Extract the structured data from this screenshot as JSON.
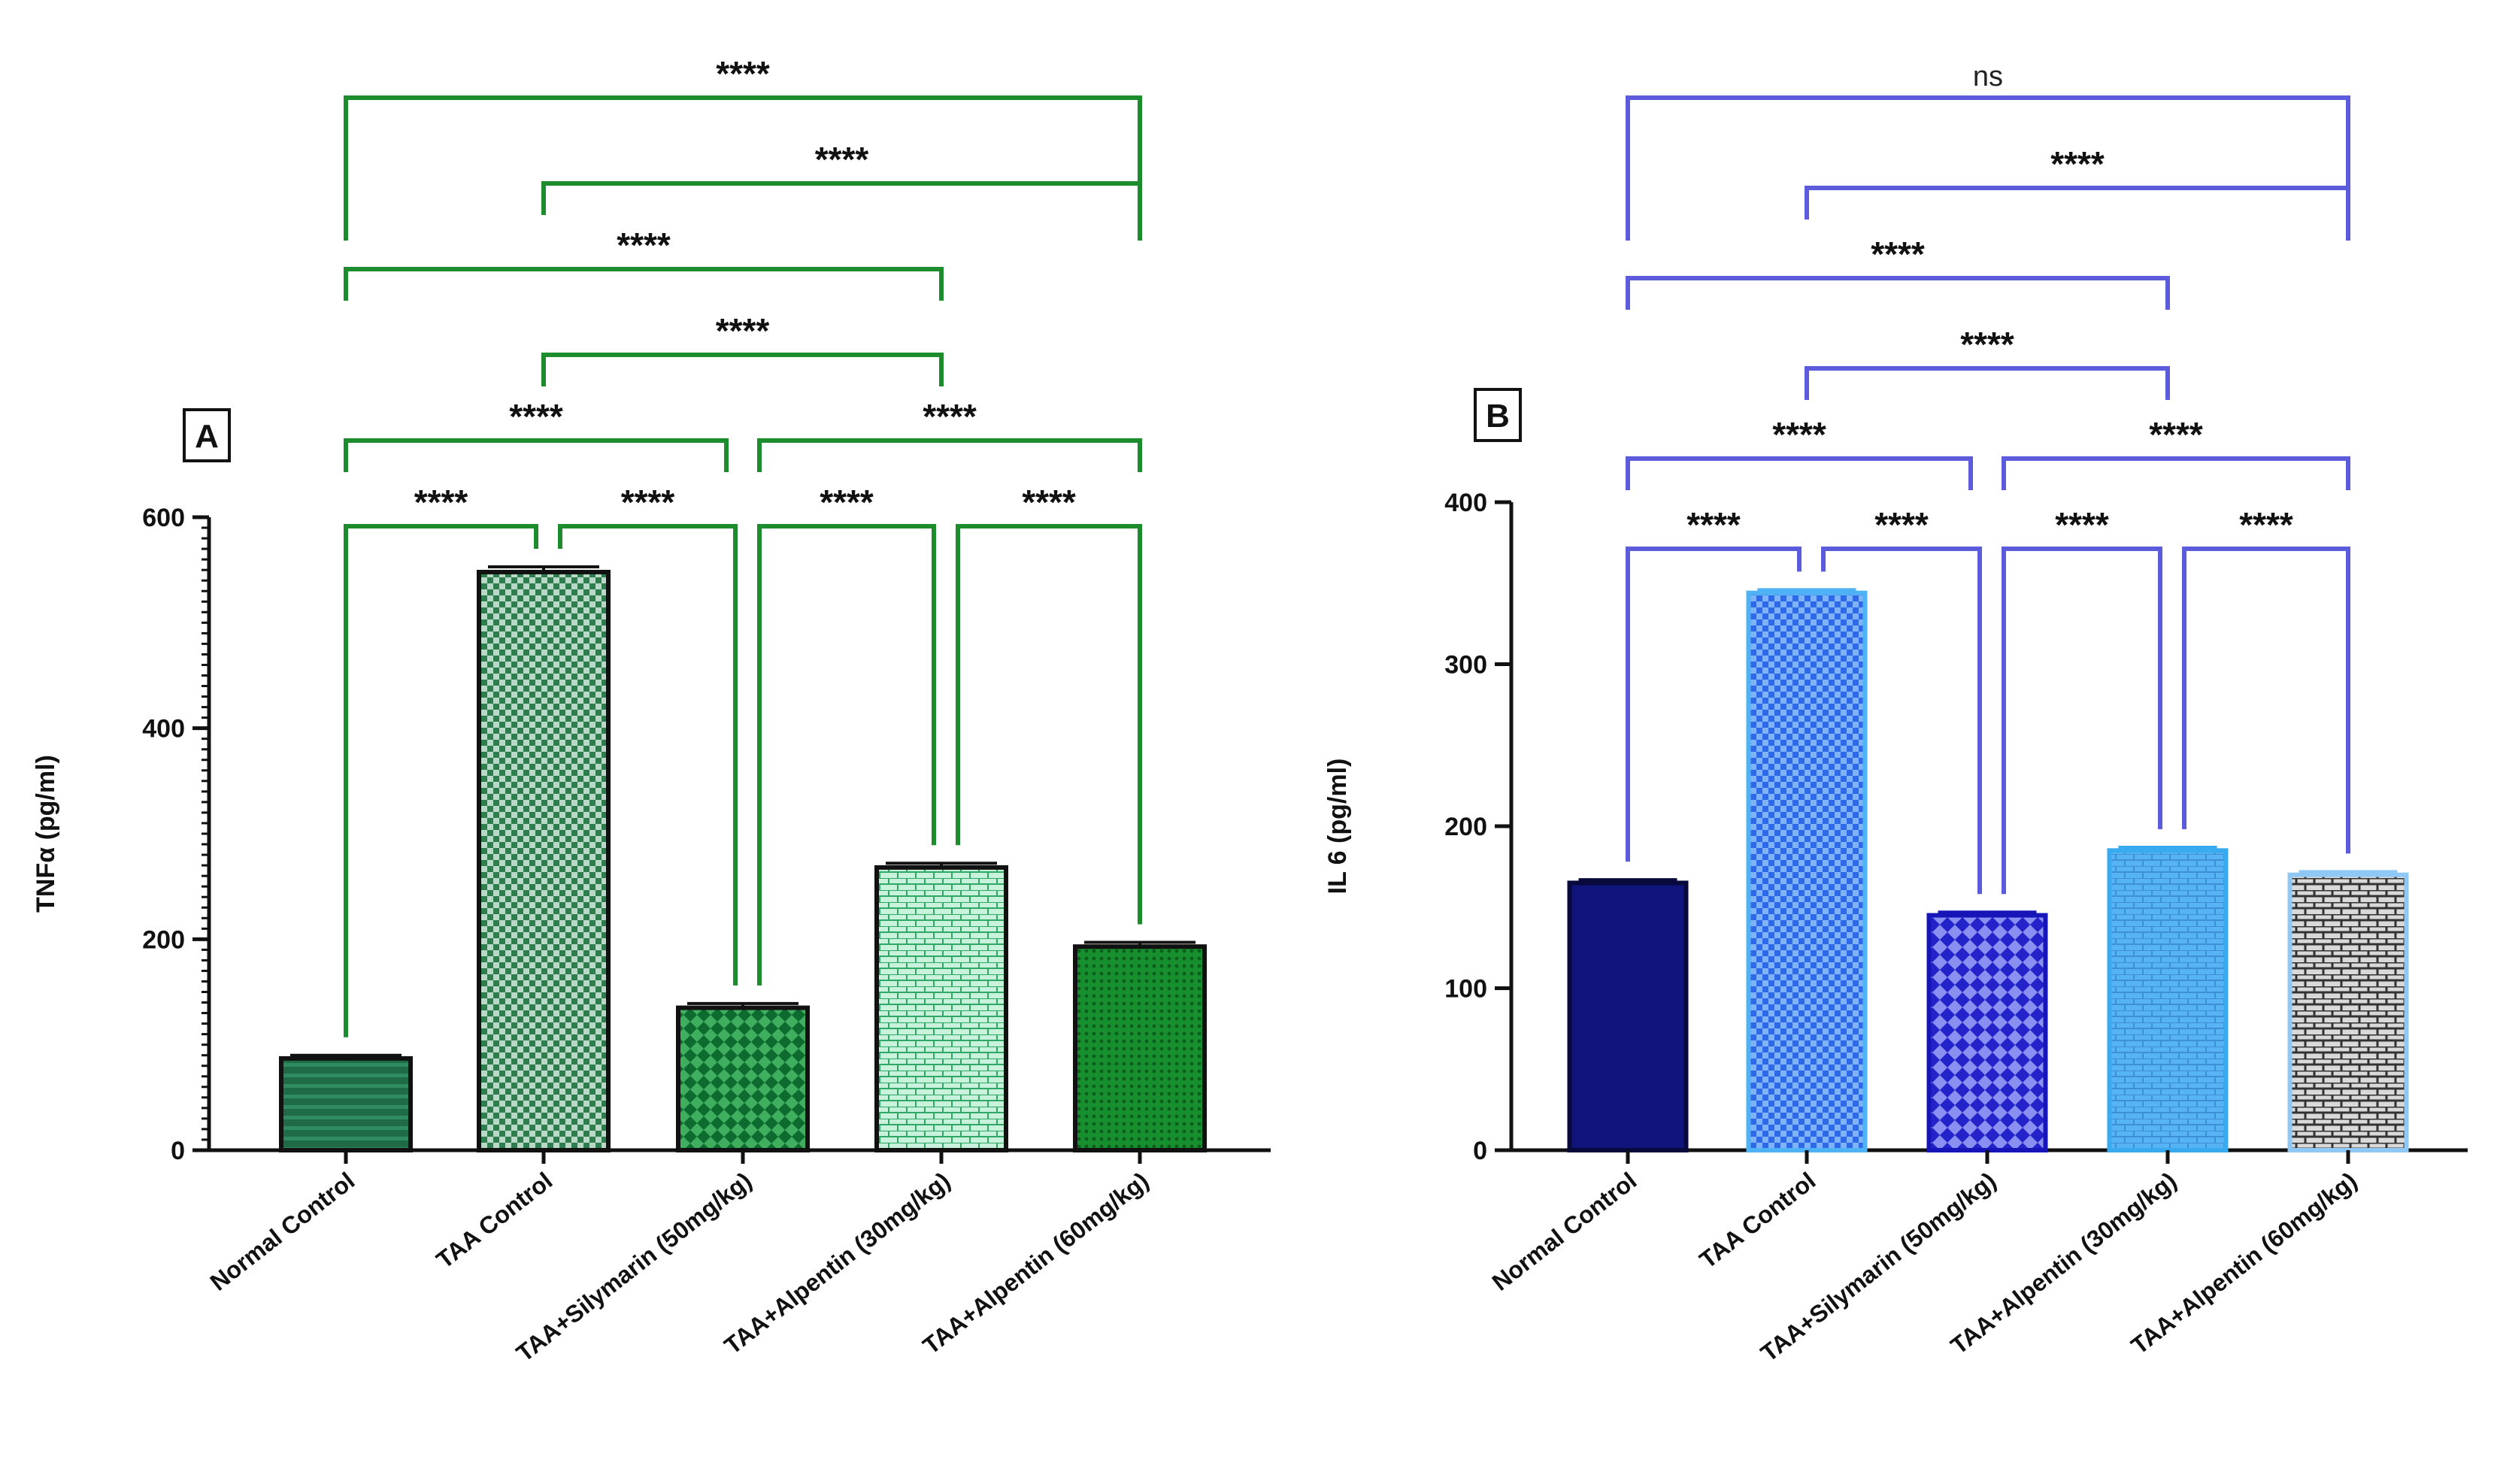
{
  "chart_data": [
    {
      "type": "bar",
      "panel": "A",
      "categories": [
        "Normal Control",
        "TAA Control",
        "TAA+Silymarin (50mg/kg)",
        "TAA+Alpentin (30mg/kg)",
        "TAA+Alpentin (60mg/kg)"
      ],
      "values": [
        87,
        548,
        135,
        268,
        193
      ],
      "errors": [
        3,
        5,
        4,
        4,
        4
      ],
      "ylabel": "TNFα (pg/ml)",
      "xlabel": "",
      "ylim": [
        0,
        600
      ],
      "yticks": [
        0,
        200,
        400,
        600
      ],
      "grid": false,
      "bracket_color": "#1d8c2c",
      "bar_colors": [
        "#1f6b47",
        "#2e8b57",
        "#127a3a",
        "#9fe3c0",
        "#1aa33a"
      ],
      "bar_fill_patterns": [
        "hlines",
        "checker",
        "diamond",
        "brick",
        "dots"
      ],
      "comparisons": [
        {
          "from": 0,
          "to": 1,
          "label": "****"
        },
        {
          "from": 1,
          "to": 2,
          "label": "****"
        },
        {
          "from": 2,
          "to": 3,
          "label": "****"
        },
        {
          "from": 3,
          "to": 4,
          "label": "****"
        },
        {
          "from": 0,
          "to": 2,
          "label": "****"
        },
        {
          "from": 2,
          "to": 4,
          "label": "****"
        },
        {
          "from": 1,
          "to": 3,
          "label": "****"
        },
        {
          "from": 0,
          "to": 3,
          "label": "****"
        },
        {
          "from": 1,
          "to": 4,
          "label": "****"
        },
        {
          "from": 0,
          "to": 4,
          "label": "****"
        }
      ]
    },
    {
      "type": "bar",
      "panel": "B",
      "categories": [
        "Normal Control",
        "TAA Control",
        "TAA+Silymarin (50mg/kg)",
        "TAA+Alpentin (30mg/kg)",
        "TAA+Alpentin (60mg/kg)"
      ],
      "values": [
        165,
        344,
        145,
        185,
        170
      ],
      "errors": [
        2,
        2,
        2,
        2,
        2
      ],
      "ylabel": "IL 6 (pg/ml)",
      "xlabel": "",
      "ylim": [
        0,
        400
      ],
      "yticks": [
        0,
        100,
        200,
        300,
        400
      ],
      "grid": false,
      "bracket_color": "#5b5bdc",
      "bar_colors": [
        "#0f137a",
        "#3d7cf0",
        "#2a2ad8",
        "#55b5f5",
        "#4a4a4a"
      ],
      "bar_edge_colors": [
        "#070a3a",
        "#4fb2f5",
        "#1515b8",
        "#3aaaf0",
        "#8fc8f5"
      ],
      "bar_fill_patterns": [
        "solid",
        "checker",
        "diamond",
        "brick",
        "brick"
      ],
      "comparisons": [
        {
          "from": 0,
          "to": 1,
          "label": "****"
        },
        {
          "from": 1,
          "to": 2,
          "label": "****"
        },
        {
          "from": 2,
          "to": 3,
          "label": "****"
        },
        {
          "from": 3,
          "to": 4,
          "label": "****"
        },
        {
          "from": 0,
          "to": 2,
          "label": "****"
        },
        {
          "from": 2,
          "to": 4,
          "label": "****"
        },
        {
          "from": 1,
          "to": 3,
          "label": "****"
        },
        {
          "from": 0,
          "to": 3,
          "label": "****"
        },
        {
          "from": 1,
          "to": 4,
          "label": "****"
        },
        {
          "from": 0,
          "to": 4,
          "label": "ns"
        }
      ]
    }
  ]
}
